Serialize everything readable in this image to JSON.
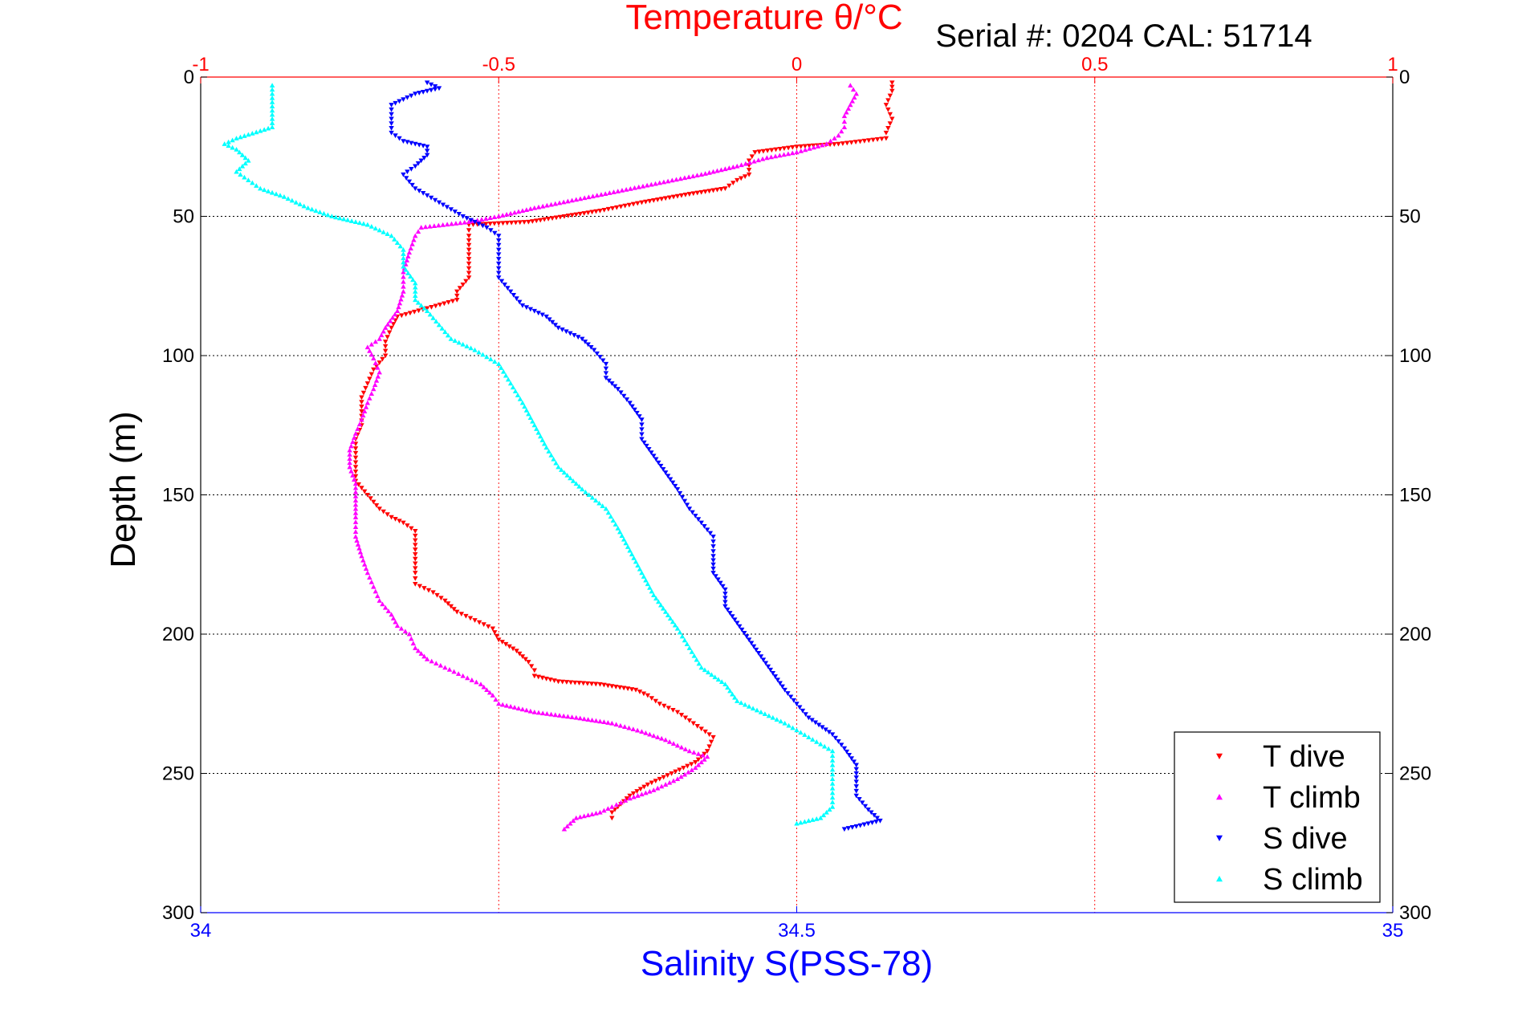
{
  "chart_data": {
    "type": "scatter",
    "title": "Temperature θ/°C",
    "subtitle": "Serial #: 0204  CAL: 51714",
    "ylabel": "Depth (m)",
    "xlabel": "Salinity S(PSS-78)",
    "temperature_axis": {
      "range": [
        -1,
        1
      ],
      "ticks": [
        -1,
        -0.5,
        0,
        0.5,
        1
      ],
      "tick_labels": [
        "-1",
        "-0.5",
        "0",
        "0.5",
        "1"
      ],
      "color": "#ff0000"
    },
    "salinity_axis": {
      "range": [
        34,
        35
      ],
      "ticks": [
        34,
        34.5,
        35
      ],
      "tick_labels": [
        "34",
        "34.5",
        "35"
      ],
      "color": "#0000ff"
    },
    "depth_axis": {
      "range": [
        0,
        300
      ],
      "reversed": true,
      "ticks": [
        0,
        50,
        100,
        150,
        200,
        250,
        300
      ],
      "tick_labels": [
        "0",
        "50",
        "100",
        "150",
        "200",
        "250",
        "300"
      ]
    },
    "grid": true,
    "legend_position": "bottom-right",
    "series": [
      {
        "name": "T dive",
        "axis": "temperature",
        "color": "#ff0000",
        "marker": "triangle-down",
        "points": [
          [
            0.16,
            2
          ],
          [
            0.16,
            5
          ],
          [
            0.15,
            10
          ],
          [
            0.16,
            15
          ],
          [
            0.15,
            20
          ],
          [
            0.15,
            22
          ],
          [
            0.07,
            24
          ],
          [
            0.0,
            25
          ],
          [
            -0.07,
            27
          ],
          [
            -0.08,
            30
          ],
          [
            -0.08,
            35
          ],
          [
            -0.1,
            37
          ],
          [
            -0.12,
            40
          ],
          [
            -0.18,
            42
          ],
          [
            -0.26,
            45
          ],
          [
            -0.33,
            48
          ],
          [
            -0.45,
            52
          ],
          [
            -0.55,
            53
          ],
          [
            -0.55,
            57
          ],
          [
            -0.55,
            62
          ],
          [
            -0.55,
            67
          ],
          [
            -0.55,
            72
          ],
          [
            -0.57,
            77
          ],
          [
            -0.57,
            80
          ],
          [
            -0.62,
            83
          ],
          [
            -0.67,
            86
          ],
          [
            -0.68,
            90
          ],
          [
            -0.69,
            95
          ],
          [
            -0.69,
            100
          ],
          [
            -0.71,
            105
          ],
          [
            -0.72,
            110
          ],
          [
            -0.73,
            115
          ],
          [
            -0.73,
            120
          ],
          [
            -0.73,
            125
          ],
          [
            -0.74,
            130
          ],
          [
            -0.74,
            135
          ],
          [
            -0.74,
            140
          ],
          [
            -0.74,
            145
          ],
          [
            -0.72,
            150
          ],
          [
            -0.7,
            155
          ],
          [
            -0.68,
            158
          ],
          [
            -0.66,
            160
          ],
          [
            -0.64,
            163
          ],
          [
            -0.64,
            168
          ],
          [
            -0.64,
            173
          ],
          [
            -0.64,
            178
          ],
          [
            -0.64,
            182
          ],
          [
            -0.61,
            185
          ],
          [
            -0.59,
            188
          ],
          [
            -0.57,
            192
          ],
          [
            -0.54,
            195
          ],
          [
            -0.51,
            198
          ],
          [
            -0.5,
            202
          ],
          [
            -0.47,
            206
          ],
          [
            -0.45,
            210
          ],
          [
            -0.44,
            213
          ],
          [
            -0.44,
            215
          ],
          [
            -0.4,
            217
          ],
          [
            -0.33,
            218
          ],
          [
            -0.27,
            220
          ],
          [
            -0.25,
            222
          ],
          [
            -0.23,
            225
          ],
          [
            -0.2,
            228
          ],
          [
            -0.18,
            231
          ],
          [
            -0.16,
            234
          ],
          [
            -0.14,
            237
          ],
          [
            -0.15,
            242
          ],
          [
            -0.17,
            246
          ],
          [
            -0.21,
            250
          ],
          [
            -0.25,
            254
          ],
          [
            -0.28,
            258
          ],
          [
            -0.3,
            262
          ],
          [
            -0.31,
            264
          ],
          [
            -0.31,
            266
          ]
        ]
      },
      {
        "name": "T climb",
        "axis": "temperature",
        "color": "#ff00ff",
        "marker": "triangle-up",
        "points": [
          [
            -0.39,
            270
          ],
          [
            -0.38,
            268
          ],
          [
            -0.37,
            266
          ],
          [
            -0.33,
            264
          ],
          [
            -0.31,
            262
          ],
          [
            -0.28,
            259
          ],
          [
            -0.24,
            256
          ],
          [
            -0.2,
            252
          ],
          [
            -0.17,
            248
          ],
          [
            -0.15,
            244
          ],
          [
            -0.18,
            242
          ],
          [
            -0.22,
            238
          ],
          [
            -0.26,
            235
          ],
          [
            -0.31,
            232
          ],
          [
            -0.37,
            230
          ],
          [
            -0.44,
            228
          ],
          [
            -0.5,
            225
          ],
          [
            -0.51,
            222
          ],
          [
            -0.53,
            218
          ],
          [
            -0.56,
            215
          ],
          [
            -0.59,
            212
          ],
          [
            -0.62,
            209
          ],
          [
            -0.64,
            205
          ],
          [
            -0.65,
            200
          ],
          [
            -0.67,
            197
          ],
          [
            -0.68,
            193
          ],
          [
            -0.7,
            188
          ],
          [
            -0.71,
            183
          ],
          [
            -0.72,
            178
          ],
          [
            -0.73,
            172
          ],
          [
            -0.74,
            165
          ],
          [
            -0.74,
            158
          ],
          [
            -0.74,
            152
          ],
          [
            -0.74,
            146
          ],
          [
            -0.75,
            140
          ],
          [
            -0.75,
            134
          ],
          [
            -0.74,
            128
          ],
          [
            -0.73,
            123
          ],
          [
            -0.72,
            117
          ],
          [
            -0.71,
            112
          ],
          [
            -0.7,
            106
          ],
          [
            -0.71,
            101
          ],
          [
            -0.72,
            97
          ],
          [
            -0.7,
            94
          ],
          [
            -0.69,
            90
          ],
          [
            -0.67,
            84
          ],
          [
            -0.66,
            77
          ],
          [
            -0.66,
            70
          ],
          [
            -0.65,
            63
          ],
          [
            -0.64,
            57
          ],
          [
            -0.63,
            54
          ],
          [
            -0.55,
            52
          ],
          [
            -0.5,
            50
          ],
          [
            -0.44,
            47
          ],
          [
            -0.37,
            44
          ],
          [
            -0.3,
            41
          ],
          [
            -0.23,
            38
          ],
          [
            -0.16,
            35
          ],
          [
            -0.1,
            32
          ],
          [
            -0.05,
            29
          ],
          [
            0.0,
            27
          ],
          [
            0.05,
            24
          ],
          [
            0.07,
            21
          ],
          [
            0.08,
            18
          ],
          [
            0.08,
            14
          ],
          [
            0.09,
            10
          ],
          [
            0.1,
            6
          ],
          [
            0.09,
            3
          ]
        ]
      },
      {
        "name": "S dive",
        "axis": "salinity",
        "color": "#0000ff",
        "marker": "triangle-down",
        "points": [
          [
            34.19,
            2
          ],
          [
            34.2,
            4
          ],
          [
            34.18,
            6
          ],
          [
            34.16,
            10
          ],
          [
            34.16,
            15
          ],
          [
            34.16,
            20
          ],
          [
            34.17,
            23
          ],
          [
            34.19,
            25
          ],
          [
            34.19,
            28
          ],
          [
            34.18,
            32
          ],
          [
            34.17,
            35
          ],
          [
            34.18,
            40
          ],
          [
            34.2,
            45
          ],
          [
            34.22,
            50
          ],
          [
            34.24,
            54
          ],
          [
            34.25,
            57
          ],
          [
            34.25,
            62
          ],
          [
            34.25,
            67
          ],
          [
            34.25,
            72
          ],
          [
            34.26,
            77
          ],
          [
            34.27,
            82
          ],
          [
            34.29,
            86
          ],
          [
            34.3,
            90
          ],
          [
            34.32,
            94
          ],
          [
            34.33,
            98
          ],
          [
            34.34,
            103
          ],
          [
            34.34,
            108
          ],
          [
            34.35,
            112
          ],
          [
            34.36,
            117
          ],
          [
            34.37,
            123
          ],
          [
            34.37,
            130
          ],
          [
            34.38,
            136
          ],
          [
            34.39,
            142
          ],
          [
            34.4,
            148
          ],
          [
            34.41,
            155
          ],
          [
            34.42,
            160
          ],
          [
            34.43,
            165
          ],
          [
            34.43,
            172
          ],
          [
            34.43,
            178
          ],
          [
            34.44,
            184
          ],
          [
            34.44,
            190
          ],
          [
            34.45,
            196
          ],
          [
            34.46,
            202
          ],
          [
            34.47,
            208
          ],
          [
            34.48,
            214
          ],
          [
            34.49,
            220
          ],
          [
            34.5,
            225
          ],
          [
            34.51,
            230
          ],
          [
            34.53,
            236
          ],
          [
            34.54,
            241
          ],
          [
            34.55,
            247
          ],
          [
            34.55,
            253
          ],
          [
            34.55,
            258
          ],
          [
            34.56,
            263
          ],
          [
            34.57,
            267
          ],
          [
            34.54,
            270
          ]
        ]
      },
      {
        "name": "S climb",
        "axis": "salinity",
        "color": "#00ffff",
        "marker": "triangle-up",
        "points": [
          [
            34.5,
            268
          ],
          [
            34.52,
            266
          ],
          [
            34.53,
            262
          ],
          [
            34.53,
            257
          ],
          [
            34.53,
            252
          ],
          [
            34.53,
            247
          ],
          [
            34.53,
            242
          ],
          [
            34.51,
            237
          ],
          [
            34.49,
            232
          ],
          [
            34.47,
            228
          ],
          [
            34.45,
            224
          ],
          [
            34.44,
            218
          ],
          [
            34.42,
            212
          ],
          [
            34.41,
            205
          ],
          [
            34.4,
            198
          ],
          [
            34.39,
            192
          ],
          [
            34.38,
            186
          ],
          [
            34.37,
            178
          ],
          [
            34.36,
            170
          ],
          [
            34.35,
            162
          ],
          [
            34.34,
            155
          ],
          [
            34.32,
            148
          ],
          [
            34.3,
            140
          ],
          [
            34.29,
            133
          ],
          [
            34.28,
            125
          ],
          [
            34.27,
            117
          ],
          [
            34.26,
            110
          ],
          [
            34.25,
            103
          ],
          [
            34.23,
            98
          ],
          [
            34.21,
            94
          ],
          [
            34.2,
            89
          ],
          [
            34.19,
            84
          ],
          [
            34.18,
            80
          ],
          [
            34.18,
            74
          ],
          [
            34.17,
            68
          ],
          [
            34.17,
            62
          ],
          [
            34.16,
            57
          ],
          [
            34.14,
            53
          ],
          [
            34.11,
            50
          ],
          [
            34.09,
            47
          ],
          [
            34.07,
            43
          ],
          [
            34.05,
            40
          ],
          [
            34.04,
            37
          ],
          [
            34.03,
            34
          ],
          [
            34.04,
            30
          ],
          [
            34.03,
            26
          ],
          [
            34.02,
            24
          ],
          [
            34.03,
            22
          ],
          [
            34.06,
            18
          ],
          [
            34.06,
            12
          ],
          [
            34.06,
            6
          ],
          [
            34.06,
            3
          ]
        ]
      }
    ]
  }
}
